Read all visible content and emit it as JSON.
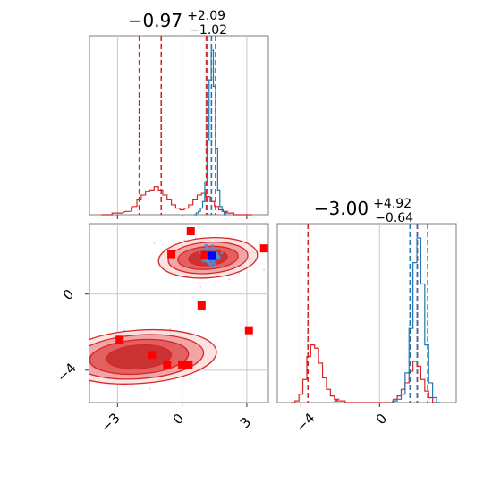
{
  "chart_data": {
    "type": "corner",
    "panels": [
      {
        "panel": "marginal-param1",
        "type": "histogram",
        "title_value": "−0.97",
        "title_plus": "+2.09",
        "title_minus": "−1.02",
        "xlim": [
          -4.3,
          4.0
        ],
        "quantile_lines": {
          "red": [
            -1.99,
            -0.97,
            1.12
          ],
          "blue": [
            1.19,
            1.36,
            1.55
          ]
        },
        "series": [
          {
            "color": "#d62728",
            "x_centers": [
              -3.5,
              -3.0,
              -2.5,
              -2.2,
              -2.0,
              -1.8,
              -1.6,
              -1.4,
              -1.2,
              -1.0,
              -0.8,
              -0.6,
              -0.4,
              -0.2,
              0.0,
              0.2,
              0.4,
              0.6,
              0.8,
              1.0,
              1.2,
              1.4,
              1.6,
              1.8,
              2.0,
              2.2,
              2.6,
              3.0
            ],
            "density": [
              0.0,
              0.01,
              0.02,
              0.05,
              0.09,
              0.12,
              0.14,
              0.15,
              0.17,
              0.15,
              0.12,
              0.09,
              0.06,
              0.04,
              0.03,
              0.04,
              0.06,
              0.09,
              0.12,
              0.13,
              0.11,
              0.08,
              0.05,
              0.03,
              0.02,
              0.01,
              0.0,
              0.0
            ]
          },
          {
            "color": "#1f77b4",
            "x_centers": [
              0.6,
              0.7,
              0.8,
              0.9,
              1.0,
              1.1,
              1.2,
              1.3,
              1.4,
              1.5,
              1.6,
              1.7,
              1.8,
              1.9,
              2.0
            ],
            "density": [
              0.0,
              0.01,
              0.02,
              0.04,
              0.08,
              0.2,
              0.45,
              0.82,
              1.0,
              0.78,
              0.4,
              0.15,
              0.05,
              0.02,
              0.0
            ]
          }
        ]
      },
      {
        "panel": "marginal-param2",
        "type": "histogram",
        "title_value": "−3.00",
        "title_plus": "+4.92",
        "title_minus": "−0.64",
        "xlim": [
          -5.2,
          3.9
        ],
        "quantile_lines": {
          "red": [
            -3.64,
            1.92
          ],
          "blue": [
            1.55,
            1.92,
            2.45
          ]
        },
        "series": [
          {
            "color": "#d62728",
            "x_centers": [
              -4.4,
              -4.2,
              -4.0,
              -3.8,
              -3.6,
              -3.4,
              -3.2,
              -3.0,
              -2.8,
              -2.6,
              -2.4,
              -2.2,
              -2.0,
              -1.5,
              -1.0,
              -0.5,
              0.0,
              0.5,
              0.8,
              1.0,
              1.2,
              1.4,
              1.6,
              1.8,
              2.0,
              2.2,
              2.4,
              2.6,
              2.8
            ],
            "density": [
              0.0,
              0.01,
              0.05,
              0.14,
              0.28,
              0.35,
              0.33,
              0.24,
              0.15,
              0.08,
              0.04,
              0.02,
              0.01,
              0.0,
              0.0,
              0.0,
              0.0,
              0.0,
              0.02,
              0.04,
              0.08,
              0.12,
              0.19,
              0.25,
              0.22,
              0.14,
              0.07,
              0.03,
              0.0
            ]
          },
          {
            "color": "#1f77b4",
            "x_centers": [
              0.6,
              0.8,
              1.0,
              1.2,
              1.4,
              1.6,
              1.8,
              2.0,
              2.2,
              2.4,
              2.6,
              2.8,
              3.0
            ],
            "density": [
              0.0,
              0.01,
              0.02,
              0.05,
              0.18,
              0.45,
              0.85,
              1.0,
              0.72,
              0.35,
              0.12,
              0.03,
              0.0
            ]
          }
        ]
      },
      {
        "panel": "joint-2d",
        "type": "contour",
        "xlim": [
          -4.3,
          4.0
        ],
        "ylim": [
          -5.7,
          3.7
        ],
        "x_ticks": [
          "−3",
          "0",
          "3"
        ],
        "x_tick_values": [
          -3,
          0,
          3
        ],
        "y_ticks": [
          "0",
          "−4"
        ],
        "y_tick_values": [
          0,
          -4
        ],
        "modes": [
          {
            "center": [
              1.2,
              1.9
            ],
            "levels": [
              [
                2.3,
                1.05
              ],
              [
                1.85,
                0.82
              ],
              [
                1.4,
                0.6
              ],
              [
                0.9,
                0.4
              ]
            ]
          },
          {
            "center": [
              -2.0,
              -3.3
            ],
            "levels": [
              [
                3.6,
                1.4
              ],
              [
                3.0,
                1.15
              ],
              [
                2.3,
                0.9
              ],
              [
                1.5,
                0.62
              ]
            ]
          }
        ],
        "blue_points": {
          "center": [
            1.3,
            2.0
          ],
          "spread": [
            0.35,
            0.45
          ],
          "count": 90
        },
        "red_squares": [
          [
            0.4,
            3.3
          ],
          [
            -0.5,
            2.1
          ],
          [
            3.8,
            2.4
          ],
          [
            1.35,
            2.05
          ],
          [
            1.05,
            2.05
          ],
          [
            0.9,
            -0.6
          ],
          [
            3.1,
            -1.9
          ],
          [
            -2.9,
            -2.4
          ],
          [
            -1.4,
            -3.2
          ],
          [
            -0.7,
            -3.7
          ],
          [
            0.0,
            -3.7
          ],
          [
            0.3,
            -3.7
          ]
        ],
        "blue_marker": [
          1.4,
          2.0
        ]
      }
    ]
  }
}
